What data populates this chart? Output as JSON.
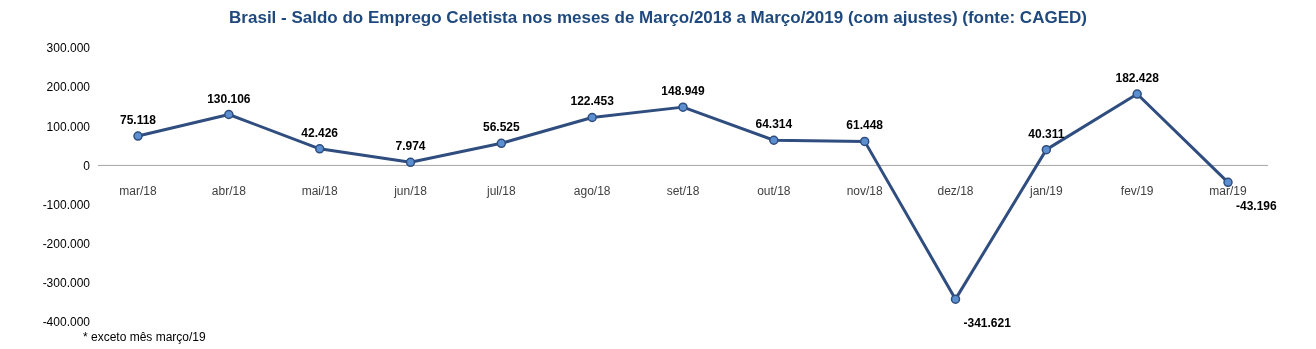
{
  "chart_data": {
    "type": "line",
    "title": "Brasil - Saldo do Emprego Celetista nos meses de Março/2018 a Março/2019 (com ajustes) (fonte: CAGED)",
    "categories": [
      "mar/18",
      "abr/18",
      "mai/18",
      "jun/18",
      "jul/18",
      "ago/18",
      "set/18",
      "out/18",
      "nov/18",
      "dez/18",
      "jan/19",
      "fev/19",
      "mar/19"
    ],
    "series": [
      {
        "color": "#2f4d7e",
        "values": [
          75118,
          130106,
          42426,
          7974,
          56525,
          122453,
          148949,
          64314,
          61448,
          -341621,
          40311,
          182428,
          -43196
        ],
        "value_labels": [
          "75.118",
          "130.106",
          "42.426",
          "7.974",
          "56.525",
          "122.453",
          "148.949",
          "64.314",
          "61.448",
          "-341.621",
          "40.311",
          "182.428",
          "-43.196"
        ]
      }
    ],
    "ylim": [
      -400000,
      300000
    ],
    "yticks": [
      {
        "value": -400000,
        "label": "-400.000"
      },
      {
        "value": -300000,
        "label": "-300.000"
      },
      {
        "value": -200000,
        "label": "-200.000"
      },
      {
        "value": -100000,
        "label": "-100.000"
      },
      {
        "value": 0,
        "label": "0"
      },
      {
        "value": 100000,
        "label": "100.000"
      },
      {
        "value": 200000,
        "label": "200.000"
      },
      {
        "value": 300000,
        "label": "300.000"
      }
    ],
    "marker": "circle",
    "line_style": "solid",
    "grid": false,
    "legend": false,
    "annotations": [
      "* exceto mês março/19"
    ]
  }
}
